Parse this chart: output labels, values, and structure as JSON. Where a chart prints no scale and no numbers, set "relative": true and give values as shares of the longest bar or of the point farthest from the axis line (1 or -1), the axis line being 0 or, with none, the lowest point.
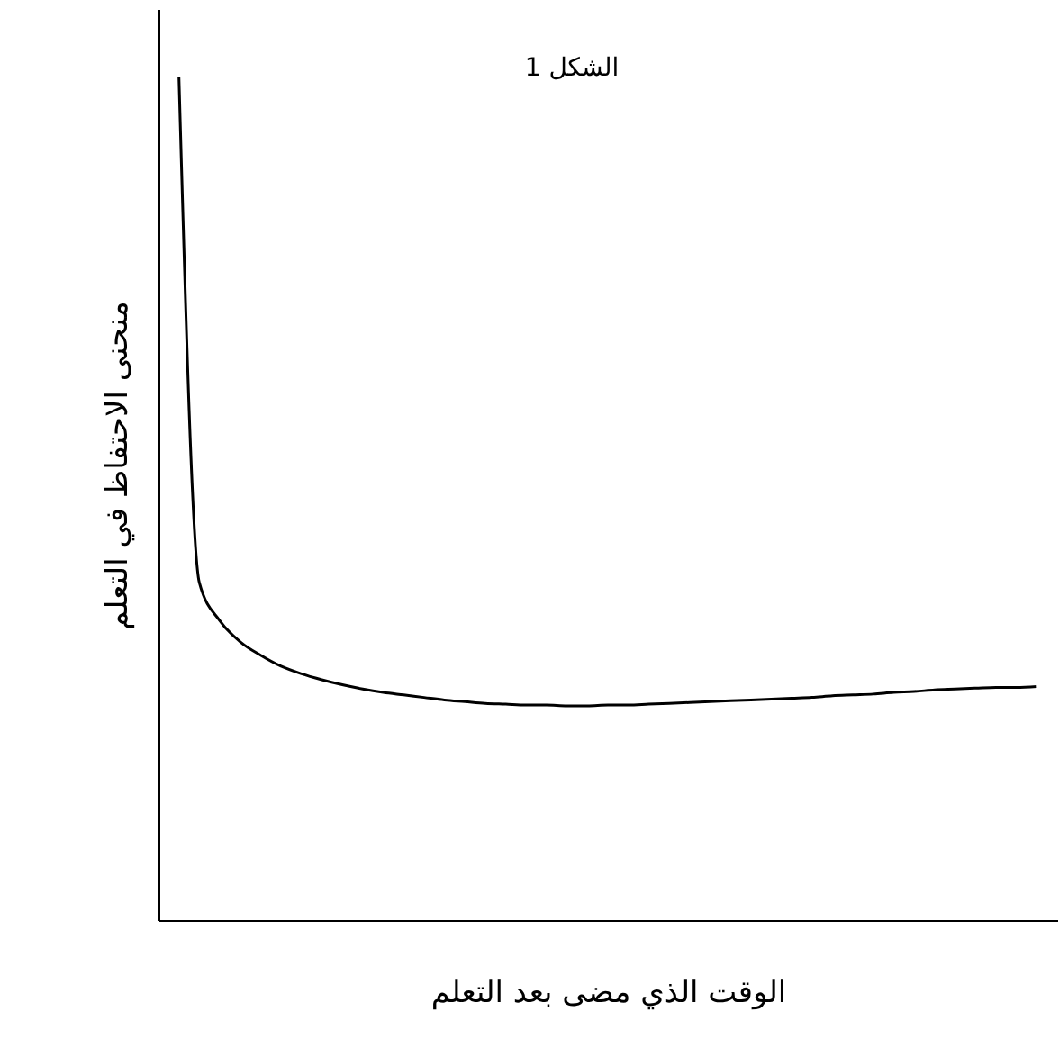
{
  "chart_data": {
    "type": "line",
    "relative": true,
    "title": "الشكل 1",
    "xlabel": "الوقت الذي مضى بعد التعلم",
    "ylabel": "منحنى الاحتفاظ في التعلم",
    "categories": [
      null,
      null,
      null,
      null,
      null,
      null,
      null,
      null,
      null,
      null,
      null,
      null,
      null,
      null,
      null,
      null,
      null,
      null,
      null,
      null,
      null,
      null,
      null,
      null,
      null,
      null,
      null,
      null,
      null,
      null,
      null,
      null,
      null,
      null,
      null,
      null,
      null,
      null,
      null,
      null,
      null,
      null,
      null
    ],
    "series": [
      {
        "color": "#000000",
        "values": [
          1.0,
          0.4,
          0.355,
          0.33,
          0.314,
          0.301,
          0.292,
          0.285,
          0.279,
          0.274,
          0.27,
          0.267,
          0.264,
          0.261,
          0.259,
          0.257,
          0.256,
          0.255,
          0.255,
          0.254,
          0.254,
          0.255,
          0.255,
          0.256,
          0.257,
          0.258,
          0.259,
          0.26,
          0.261,
          0.262,
          0.263,
          0.264,
          0.266,
          0.267,
          0.268,
          0.27,
          0.271,
          0.273,
          0.274,
          0.275,
          0.276,
          0.276,
          0.277
        ]
      }
    ],
    "grid": false,
    "marker": "none",
    "line_style": "solid"
  }
}
